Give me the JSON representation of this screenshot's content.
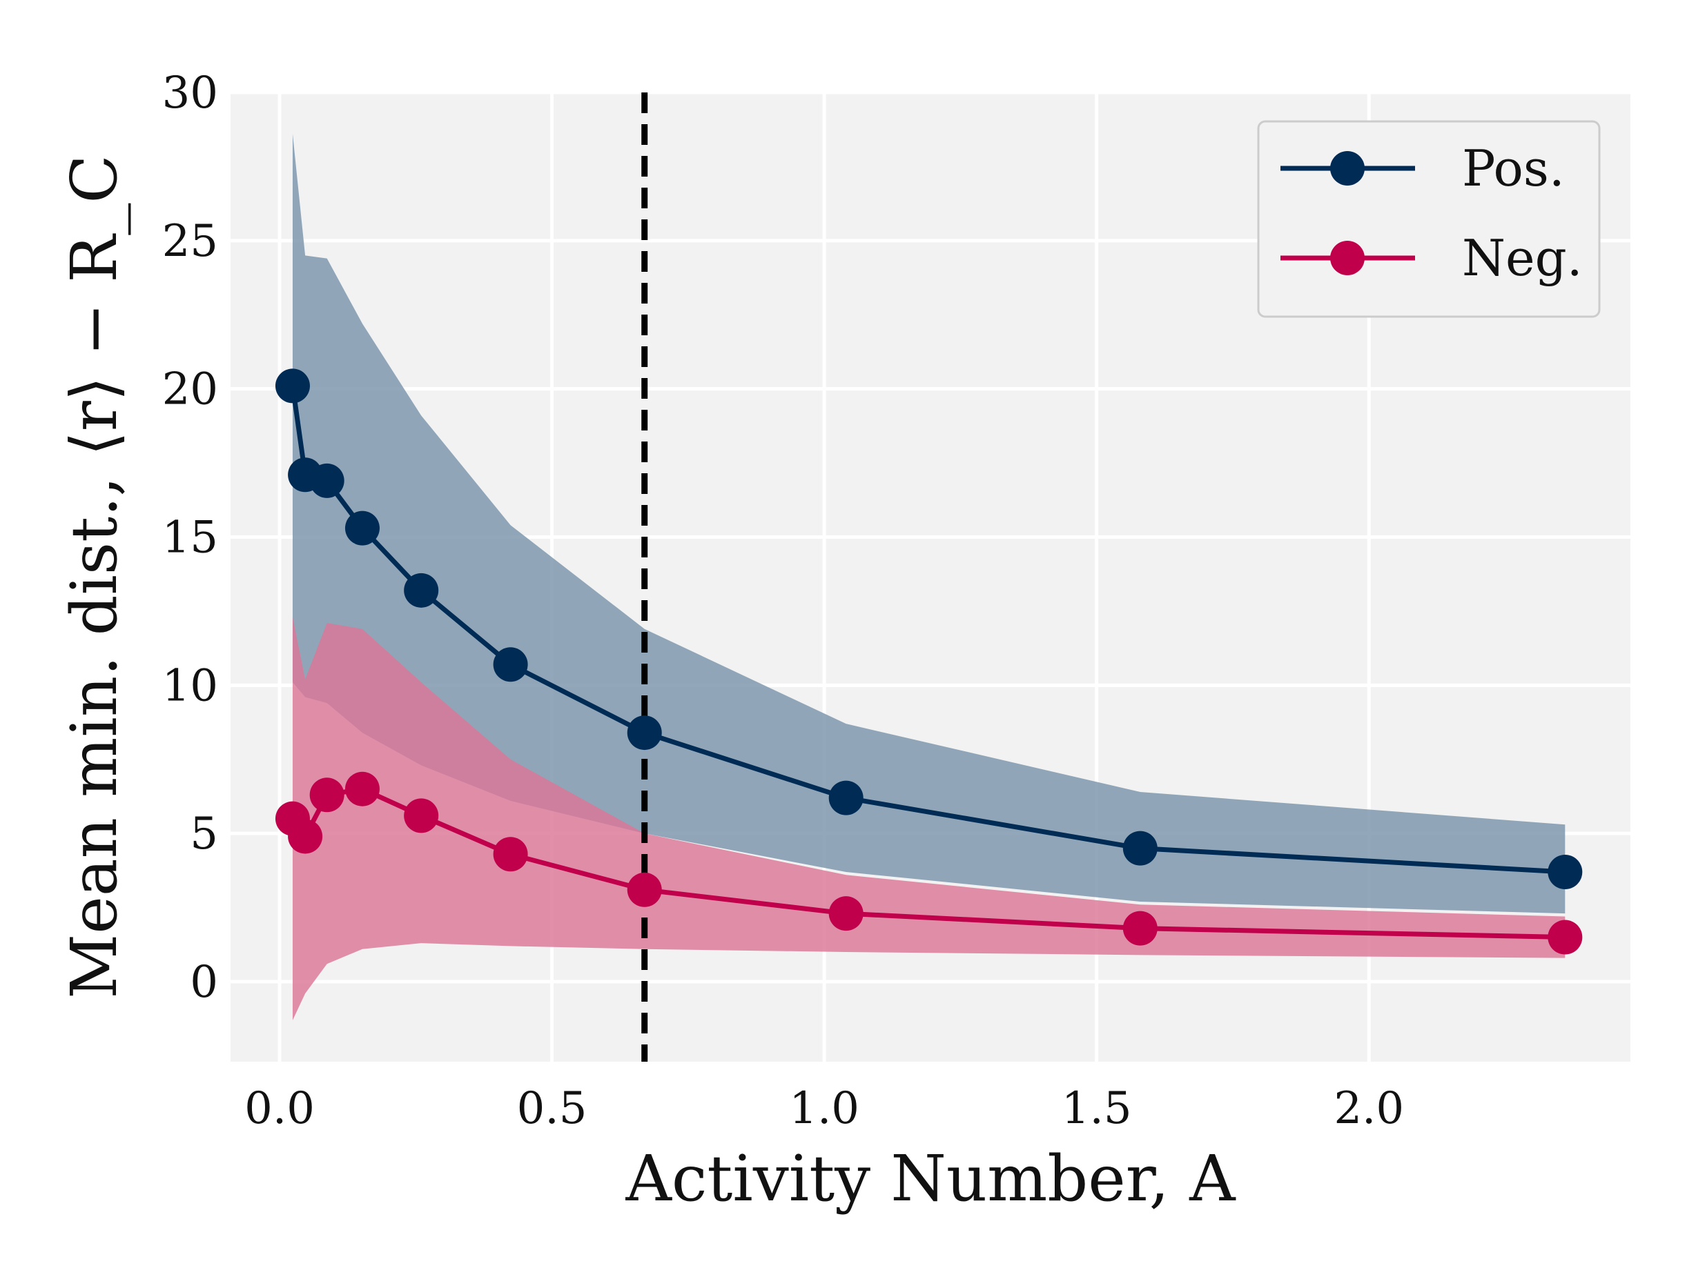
{
  "chart_data": {
    "type": "line",
    "xlabel": "Activity Number, A",
    "ylabel": "Mean min. dist., ⟨r⟩ − R_C",
    "xlim": [
      -0.09,
      2.48
    ],
    "ylim": [
      -2.7,
      30
    ],
    "xticks": [
      0.0,
      0.5,
      1.0,
      1.5,
      2.0
    ],
    "xtick_labels": [
      "0.0",
      "0.5",
      "1.0",
      "1.5",
      "2.0"
    ],
    "yticks": [
      0,
      5,
      10,
      15,
      20,
      25,
      30
    ],
    "ytick_labels": [
      "0",
      "5",
      "10",
      "15",
      "20",
      "25",
      "30"
    ],
    "grid": true,
    "legend": "top-right",
    "vline": 0.67,
    "x": [
      0.024,
      0.047,
      0.087,
      0.152,
      0.26,
      0.424,
      0.67,
      1.04,
      1.58,
      2.36
    ],
    "series": [
      {
        "name": "Pos.",
        "color": "#002b55",
        "fill": "#7a95ab",
        "values": [
          20.1,
          17.1,
          16.9,
          15.3,
          13.2,
          10.7,
          8.4,
          6.2,
          4.5,
          3.7
        ],
        "upper": [
          28.6,
          24.5,
          24.4,
          22.2,
          19.1,
          15.4,
          11.9,
          8.7,
          6.4,
          5.3
        ],
        "lower": [
          10.1,
          9.6,
          9.4,
          8.4,
          7.3,
          6.1,
          5.0,
          3.7,
          2.7,
          2.3
        ]
      },
      {
        "name": "Neg.",
        "color": "#c0004a",
        "fill": "#dc7697",
        "values": [
          5.5,
          4.9,
          6.3,
          6.5,
          5.6,
          4.3,
          3.1,
          2.3,
          1.8,
          1.5
        ],
        "upper": [
          12.3,
          10.2,
          12.1,
          11.9,
          10.1,
          7.5,
          5.0,
          3.6,
          2.6,
          2.2
        ],
        "lower": [
          -1.3,
          -0.4,
          0.6,
          1.1,
          1.3,
          1.2,
          1.1,
          1.0,
          0.9,
          0.8
        ]
      }
    ]
  }
}
